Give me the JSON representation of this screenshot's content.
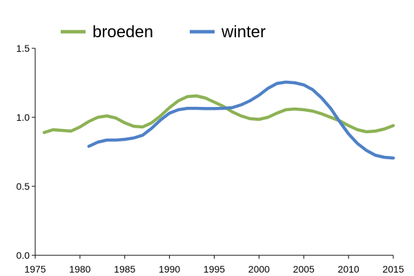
{
  "chart_data": {
    "type": "line",
    "title": "",
    "xlabel": "",
    "ylabel": "",
    "xlim": [
      1975,
      2015
    ],
    "ylim": [
      0,
      1.5
    ],
    "xticks": [
      1975,
      1980,
      1985,
      1990,
      1995,
      2000,
      2005,
      2010,
      2015
    ],
    "yticks": [
      0,
      0.5,
      1,
      1.5
    ],
    "xtick_labels": [
      "1975",
      "1980",
      "1985",
      "1990",
      "1995",
      "2000",
      "2005",
      "2010",
      "2015"
    ],
    "ytick_labels": [
      "0.0",
      "0.5",
      "1.0",
      "1.5"
    ],
    "grid": false,
    "legend_position": "top",
    "series": [
      {
        "name": "broeden",
        "color": "#8DB255",
        "x": [
          1976,
          1977,
          1978,
          1979,
          1980,
          1981,
          1982,
          1983,
          1984,
          1985,
          1986,
          1987,
          1988,
          1989,
          1990,
          1991,
          1992,
          1993,
          1994,
          1995,
          1996,
          1997,
          1998,
          1999,
          2000,
          2001,
          2002,
          2003,
          2004,
          2005,
          2006,
          2007,
          2008,
          2009,
          2010,
          2011,
          2012,
          2013,
          2014,
          2015
        ],
        "y": [
          0.89,
          0.91,
          0.905,
          0.9,
          0.93,
          0.97,
          1.0,
          1.01,
          0.995,
          0.96,
          0.935,
          0.93,
          0.96,
          1.01,
          1.07,
          1.12,
          1.15,
          1.155,
          1.14,
          1.11,
          1.08,
          1.04,
          1.01,
          0.99,
          0.985,
          1.0,
          1.03,
          1.055,
          1.06,
          1.055,
          1.045,
          1.025,
          1.0,
          0.975,
          0.94,
          0.91,
          0.895,
          0.9,
          0.915,
          0.94
        ]
      },
      {
        "name": "winter",
        "color": "#4F81C7",
        "x": [
          1981,
          1982,
          1983,
          1984,
          1985,
          1986,
          1987,
          1988,
          1989,
          1990,
          1991,
          1992,
          1993,
          1994,
          1995,
          1996,
          1997,
          1998,
          1999,
          2000,
          2001,
          2002,
          2003,
          2004,
          2005,
          2006,
          2007,
          2008,
          2009,
          2010,
          2011,
          2012,
          2013,
          2014,
          2015
        ],
        "y": [
          0.79,
          0.82,
          0.835,
          0.835,
          0.84,
          0.85,
          0.87,
          0.92,
          0.98,
          1.03,
          1.055,
          1.065,
          1.065,
          1.063,
          1.063,
          1.065,
          1.07,
          1.09,
          1.12,
          1.16,
          1.21,
          1.245,
          1.255,
          1.25,
          1.235,
          1.2,
          1.14,
          1.065,
          0.97,
          0.88,
          0.81,
          0.76,
          0.725,
          0.71,
          0.705
        ]
      }
    ]
  }
}
